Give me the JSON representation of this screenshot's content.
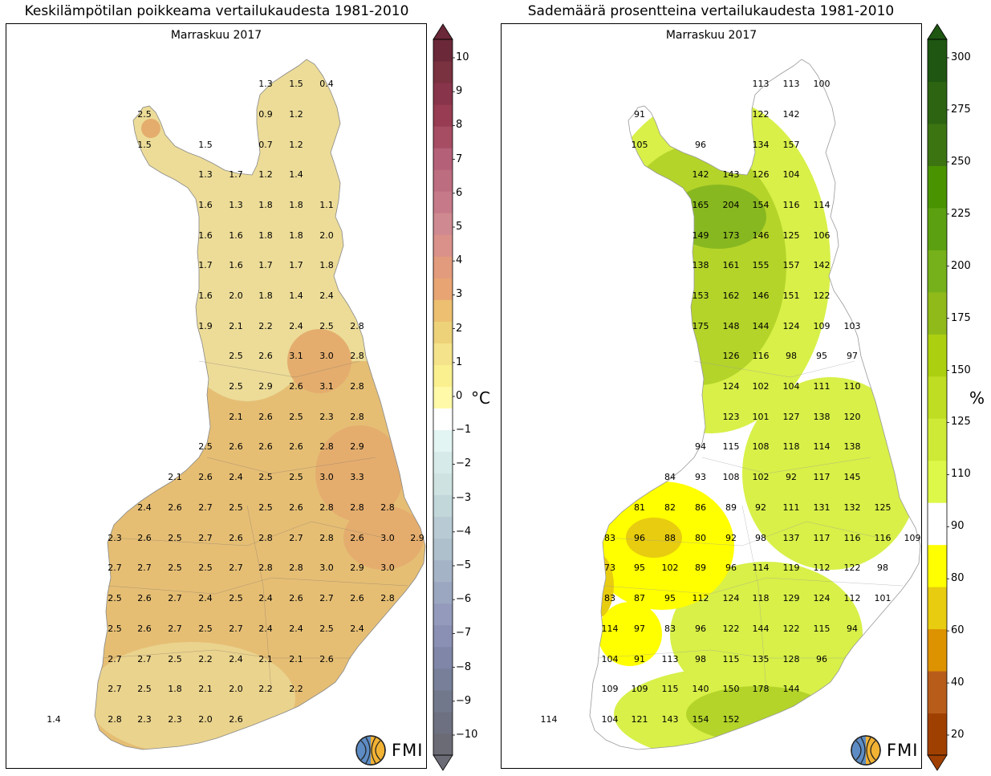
{
  "left": {
    "title": "Keskilämpötilan poikkeama vertailukaudesta 1981-2010",
    "subtitle": "Marraskuu 2017",
    "unit": "°C",
    "logo_text": "FMI",
    "colors": {
      "low": "#ecdc98",
      "mid": "#e5be74",
      "high": "#e4ad6e",
      "outline": "#888888",
      "city_line": "#8a7a6a"
    },
    "cbar_colors": [
      "#6b6b75",
      "#6d7080",
      "#72788c",
      "#777f99",
      "#8086a8",
      "#8a8fb4",
      "#939abb",
      "#9ba6c0",
      "#a5b3c7",
      "#aec0cc",
      "#b8cbd4",
      "#c2d7da",
      "#cde2e1",
      "#d6ebe9",
      "#e2f5f3",
      "#ffffff",
      "#fff9a8",
      "#fbf08f",
      "#f4e38a",
      "#edd27a",
      "#ecc070",
      "#e8a472",
      "#e29b7c",
      "#d9918a",
      "#cf8990",
      "#c67a89",
      "#bd6d80",
      "#b46078",
      "#a64d63",
      "#973c52",
      "#88344a",
      "#7a3140",
      "#6a2838"
    ],
    "ticks": [
      "10",
      "9",
      "8",
      "7",
      "6",
      "5",
      "4",
      "3",
      "2",
      "1",
      "0",
      "−1",
      "−2",
      "−3",
      "−4",
      "−5",
      "−6",
      "−7",
      "−8",
      "−9",
      "−10"
    ],
    "values": [
      [
        "1.3",
        "1.5",
        "0.4"
      ],
      [
        "2.5",
        "0.9",
        "1.2"
      ],
      [
        "1.5",
        "1.5",
        "0.7",
        "1.2"
      ],
      [
        "1.3",
        "1.7",
        "1.2",
        "1.4"
      ],
      [
        "1.6",
        "1.3",
        "1.8",
        "1.8",
        "1.1"
      ],
      [
        "1.6",
        "1.6",
        "1.8",
        "1.8",
        "2.0"
      ],
      [
        "1.7",
        "1.6",
        "1.7",
        "1.7",
        "1.8"
      ],
      [
        "1.6",
        "2.0",
        "1.8",
        "1.4",
        "2.4"
      ],
      [
        "1.9",
        "2.1",
        "2.2",
        "2.4",
        "2.5",
        "2.8"
      ],
      [
        "2.5",
        "2.6",
        "3.1",
        "3.0",
        "2.8"
      ],
      [
        "2.5",
        "2.9",
        "2.6",
        "3.1",
        "2.8"
      ],
      [
        "2.1",
        "2.6",
        "2.5",
        "2.3",
        "2.8"
      ],
      [
        "2.5",
        "2.6",
        "2.6",
        "2.6",
        "2.8",
        "2.9"
      ],
      [
        "2.1",
        "2.6",
        "2.4",
        "2.5",
        "2.5",
        "3.0",
        "3.3"
      ],
      [
        "2.4",
        "2.6",
        "2.7",
        "2.5",
        "2.5",
        "2.6",
        "2.8",
        "2.8",
        "2.8"
      ],
      [
        "2.3",
        "2.6",
        "2.5",
        "2.7",
        "2.6",
        "2.8",
        "2.7",
        "2.8",
        "2.6",
        "3.0",
        "2.9"
      ],
      [
        "2.7",
        "2.7",
        "2.5",
        "2.5",
        "2.7",
        "2.8",
        "2.8",
        "3.0",
        "2.9",
        "3.0"
      ],
      [
        "2.5",
        "2.6",
        "2.7",
        "2.4",
        "2.5",
        "2.4",
        "2.6",
        "2.7",
        "2.6",
        "2.8"
      ],
      [
        "2.5",
        "2.6",
        "2.7",
        "2.5",
        "2.7",
        "2.4",
        "2.4",
        "2.5",
        "2.4"
      ],
      [
        "2.7",
        "2.7",
        "2.5",
        "2.2",
        "2.4",
        "2.1",
        "2.1",
        "2.6"
      ],
      [
        "2.7",
        "2.5",
        "1.8",
        "2.1",
        "2.0",
        "2.2",
        "2.2"
      ],
      [
        "1.4",
        "2.8",
        "2.3",
        "2.3",
        "2.0",
        "2.6"
      ]
    ]
  },
  "right": {
    "title": "Sademäärä prosentteina vertailukaudesta 1981-2010",
    "subtitle": "Marraskuu 2017",
    "unit": "%",
    "logo_text": "FMI",
    "colors": {
      "green_light": "#d8f048",
      "green_mid": "#b4d42a",
      "green_dark": "#88b820",
      "yellow": "#ffff00",
      "yellow_dark": "#e8cc10",
      "orange": "#dd9200",
      "outline": "#999999"
    },
    "cbar_colors": [
      "#a04000",
      "#b85c1a",
      "#dd9200",
      "#e8cc10",
      "#ffff00",
      "#ffffff",
      "#ddf848",
      "#cfea36",
      "#bfdd22",
      "#acd010",
      "#8fba1a",
      "#76b01a",
      "#5ba010",
      "#4a9300",
      "#3c7412",
      "#2d6412",
      "#1e5612"
    ],
    "ticks": [
      "300",
      "275",
      "250",
      "225",
      "200",
      "175",
      "150",
      "125",
      "110",
      "90",
      "80",
      "60",
      "40",
      "20"
    ],
    "values": [
      [
        "113",
        "113",
        "100"
      ],
      [
        "91",
        "122",
        "142"
      ],
      [
        "105",
        "96",
        "134",
        "157"
      ],
      [
        "142",
        "143",
        "126",
        "104"
      ],
      [
        "165",
        "204",
        "154",
        "116",
        "114"
      ],
      [
        "149",
        "173",
        "146",
        "125",
        "106"
      ],
      [
        "138",
        "161",
        "155",
        "157",
        "142"
      ],
      [
        "153",
        "162",
        "146",
        "151",
        "122"
      ],
      [
        "175",
        "148",
        "144",
        "124",
        "109",
        "103"
      ],
      [
        "126",
        "116",
        "98",
        "95",
        "97"
      ],
      [
        "124",
        "102",
        "104",
        "111",
        "110"
      ],
      [
        "123",
        "101",
        "127",
        "138",
        "120"
      ],
      [
        "94",
        "115",
        "108",
        "118",
        "114",
        "138"
      ],
      [
        "84",
        "93",
        "108",
        "102",
        "92",
        "117",
        "145"
      ],
      [
        "81",
        "82",
        "86",
        "89",
        "92",
        "111",
        "131",
        "132",
        "125"
      ],
      [
        "83",
        "96",
        "88",
        "80",
        "92",
        "98",
        "137",
        "117",
        "116",
        "116",
        "109"
      ],
      [
        "73",
        "95",
        "102",
        "89",
        "96",
        "114",
        "119",
        "112",
        "122",
        "98"
      ],
      [
        "83",
        "87",
        "95",
        "112",
        "124",
        "118",
        "129",
        "124",
        "112",
        "101"
      ],
      [
        "114",
        "97",
        "83",
        "96",
        "122",
        "144",
        "122",
        "115",
        "94"
      ],
      [
        "104",
        "91",
        "113",
        "98",
        "115",
        "135",
        "128",
        "96"
      ],
      [
        "109",
        "109",
        "115",
        "140",
        "150",
        "178",
        "144"
      ],
      [
        "114",
        "104",
        "121",
        "143",
        "154",
        "152"
      ]
    ]
  }
}
